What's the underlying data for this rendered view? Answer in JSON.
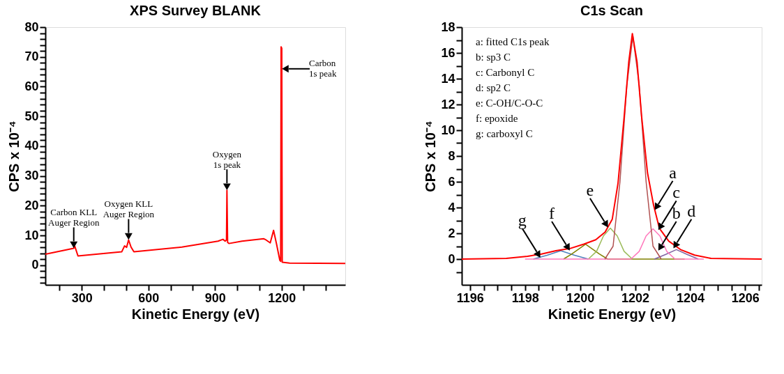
{
  "chart_data": [
    {
      "type": "line",
      "title": "XPS Survey BLANK",
      "xlabel": "Kinetic Energy (eV)",
      "ylabel": "CPS x 10⁻⁴",
      "grid": false,
      "legend": false,
      "line_style": "solid",
      "marker": "none",
      "xlim": [
        136,
        1487
      ],
      "ylim": [
        -6.6,
        80
      ],
      "xticks": [
        {
          "value": 200,
          "label": null
        },
        300,
        {
          "value": 400,
          "label": null
        },
        {
          "value": 500,
          "label": null
        },
        600,
        {
          "value": 700,
          "label": null
        },
        {
          "value": 800,
          "label": null
        },
        900,
        {
          "value": 1000,
          "label": null
        },
        {
          "value": 1100,
          "label": null
        },
        1200,
        {
          "value": 1300,
          "label": null
        },
        {
          "value": 1400,
          "label": null
        }
      ],
      "yticks": [
        {
          "value": -6,
          "label": null
        },
        {
          "value": -4,
          "label": null
        },
        {
          "value": -2,
          "label": null
        },
        0,
        {
          "value": 2,
          "label": null
        },
        {
          "value": 4,
          "label": null
        },
        {
          "value": 6,
          "label": null
        },
        {
          "value": 8,
          "label": null
        },
        10,
        {
          "value": 12,
          "label": null
        },
        {
          "value": 14,
          "label": null
        },
        {
          "value": 16,
          "label": null
        },
        {
          "value": 18,
          "label": null
        },
        20,
        {
          "value": 22,
          "label": null
        },
        {
          "value": 24,
          "label": null
        },
        {
          "value": 26,
          "label": null
        },
        {
          "value": 28,
          "label": null
        },
        30,
        {
          "value": 32,
          "label": null
        },
        {
          "value": 34,
          "label": null
        },
        {
          "value": 36,
          "label": null
        },
        {
          "value": 38,
          "label": null
        },
        40,
        {
          "value": 42,
          "label": null
        },
        {
          "value": 44,
          "label": null
        },
        {
          "value": 46,
          "label": null
        },
        {
          "value": 48,
          "label": null
        },
        50,
        {
          "value": 52,
          "label": null
        },
        {
          "value": 54,
          "label": null
        },
        {
          "value": 56,
          "label": null
        },
        {
          "value": 58,
          "label": null
        },
        60,
        {
          "value": 62,
          "label": null
        },
        {
          "value": 64,
          "label": null
        },
        {
          "value": 66,
          "label": null
        },
        {
          "value": 68,
          "label": null
        },
        70,
        {
          "value": 72,
          "label": null
        },
        {
          "value": 74,
          "label": null
        },
        {
          "value": 76,
          "label": null
        },
        {
          "value": 78,
          "label": null
        },
        80
      ],
      "series": [
        {
          "color": "#ff0000",
          "x": [
            136,
            264,
            269,
            283,
            480,
            493,
            502,
            511,
            522,
            535,
            751,
            914,
            936,
            946,
            952,
            954,
            957,
            963,
            1022,
            1120,
            1130,
            1149,
            1164,
            1178,
            1192,
            1196,
            1198,
            1201,
            1203,
            1236,
            1487
          ],
          "values": [
            3.7,
            5.7,
            6.3,
            3.1,
            4.5,
            6.5,
            6.0,
            8.5,
            6.1,
            4.5,
            6.1,
            8.1,
            8.7,
            8.1,
            8.5,
            25.2,
            7.7,
            7.3,
            8.1,
            8.9,
            8.5,
            7.5,
            11.7,
            6.9,
            1.7,
            1.3,
            73.4,
            72.9,
            1.0,
            0.7,
            0.6
          ]
        }
      ],
      "annotations": [
        {
          "text": "Carbon KLL\nAuger Region",
          "x": 264,
          "y": 5.7
        },
        {
          "text": "Oxygen KLL\nAuger Region",
          "x": 511,
          "y": 8.5
        },
        {
          "text": "Oxygen\n1s peak",
          "x": 954,
          "y": 25.2
        },
        {
          "text": "Carbon\n1s peak",
          "x": 1201.2,
          "y": 66
        }
      ]
    },
    {
      "type": "line",
      "title": "C1s Scan",
      "xlabel": "Kinetic Energy (eV)",
      "ylabel": "CPS x 10⁻⁴",
      "grid": false,
      "legend": false,
      "line_style": "solid",
      "marker": "none",
      "xlim": [
        1195.7,
        1206.6
      ],
      "ylim": [
        -2,
        18
      ],
      "xticks": [
        1196,
        {
          "value": 1196.5,
          "label": null
        },
        {
          "value": 1197,
          "label": null
        },
        {
          "value": 1197.5,
          "label": null
        },
        1198,
        {
          "value": 1198.5,
          "label": null
        },
        {
          "value": 1199,
          "label": null
        },
        {
          "value": 1199.5,
          "label": null
        },
        1200,
        {
          "value": 1200.5,
          "label": null
        },
        {
          "value": 1201,
          "label": null
        },
        {
          "value": 1201.5,
          "label": null
        },
        1202,
        {
          "value": 1202.5,
          "label": null
        },
        {
          "value": 1203,
          "label": null
        },
        {
          "value": 1203.5,
          "label": null
        },
        1204,
        {
          "value": 1204.5,
          "label": null
        },
        {
          "value": 1205,
          "label": null
        },
        {
          "value": 1205.5,
          "label": null
        },
        1206,
        {
          "value": 1206.5,
          "label": null
        }
      ],
      "yticks": [
        {
          "value": -1,
          "label": null
        },
        0,
        {
          "value": 1,
          "label": null
        },
        2,
        {
          "value": 3,
          "label": null
        },
        4,
        {
          "value": 5,
          "label": null
        },
        6,
        {
          "value": 7,
          "label": null
        },
        8,
        {
          "value": 9,
          "label": null
        },
        10,
        {
          "value": 11,
          "label": null
        },
        12,
        {
          "value": 13,
          "label": null
        },
        14,
        {
          "value": 15,
          "label": null
        },
        16,
        {
          "value": 17,
          "label": null
        },
        18
      ],
      "series": [
        {
          "color": "#4f81bd",
          "x": [
            1198.3,
            1198.8,
            1199.3,
            1199.8,
            1200.3
          ],
          "values": [
            0,
            0.3,
            0.65,
            0.3,
            0
          ]
        },
        {
          "color": "#808000",
          "x": [
            1199.4,
            1199.7,
            1200.2,
            1200.7,
            1201.0,
            1203.8
          ],
          "values": [
            0,
            0.4,
            1.16,
            0.4,
            0,
            0
          ]
        },
        {
          "color": "#9bbb59",
          "x": [
            1200.3,
            1200.6,
            1200.85,
            1201.1,
            1201.35,
            1201.6,
            1201.9
          ],
          "values": [
            0,
            0.6,
            1.8,
            2.4,
            1.8,
            0.6,
            0
          ]
        },
        {
          "color": "#8064a2",
          "x": [
            1202.7,
            1203.1,
            1203.5,
            1203.9,
            1204.3
          ],
          "values": [
            0,
            0.35,
            0.74,
            0.35,
            0
          ]
        },
        {
          "color": "#ff77bb",
          "x": [
            1198.0,
            1201.85,
            1202.15,
            1202.4,
            1202.65,
            1202.9,
            1203.15,
            1203.45,
            1204.5
          ],
          "values": [
            0,
            0,
            0.6,
            1.8,
            2.35,
            1.8,
            0.6,
            0,
            0
          ]
        },
        {
          "color": "#b05050",
          "x": [
            1200.9,
            1201.2,
            1201.45,
            1201.7,
            1201.92,
            1202.15,
            1202.4,
            1202.65,
            1202.95
          ],
          "values": [
            0,
            1.0,
            6,
            13.5,
            17.3,
            13.5,
            6,
            1.0,
            0
          ]
        },
        {
          "color": "#ff0000",
          "x": [
            1195.7,
            1197.32,
            1198.09,
            1198.6,
            1199.12,
            1199.63,
            1200.14,
            1200.57,
            1200.91,
            1201.17,
            1201.38,
            1201.6,
            1201.77,
            1201.9,
            1202.07,
            1202.24,
            1202.45,
            1202.67,
            1202.88,
            1203.22,
            1203.65,
            1204.16,
            1204.76,
            1206.6
          ],
          "values": [
            0,
            0.05,
            0.22,
            0.39,
            0.65,
            0.82,
            1.16,
            1.5,
            2.1,
            3.1,
            5.9,
            11.0,
            15.3,
            17.5,
            15.3,
            11.0,
            6.7,
            4.2,
            2.4,
            1.4,
            0.74,
            0.31,
            0.05,
            0
          ]
        }
      ],
      "annotations": [
        "a: fitted C1s peak",
        "b: sp3 C",
        "c: Carbonyl C",
        "d: sp2 C",
        "e: C-OH/C-O-C",
        "f: epoxide",
        "g: carboxyl C",
        {
          "text": "g",
          "x": 1198.56,
          "y": 0.1
        },
        {
          "text": "f",
          "x": 1199.63,
          "y": 0.65
        },
        {
          "text": "e",
          "x": 1201.02,
          "y": 2.45
        },
        {
          "text": "a",
          "x": 1202.71,
          "y": 3.8
        },
        {
          "text": "c",
          "x": 1202.84,
          "y": 2.25
        },
        {
          "text": "b",
          "x": 1202.84,
          "y": 0.65
        },
        {
          "text": "d",
          "x": 1203.39,
          "y": 0.82
        }
      ]
    }
  ]
}
